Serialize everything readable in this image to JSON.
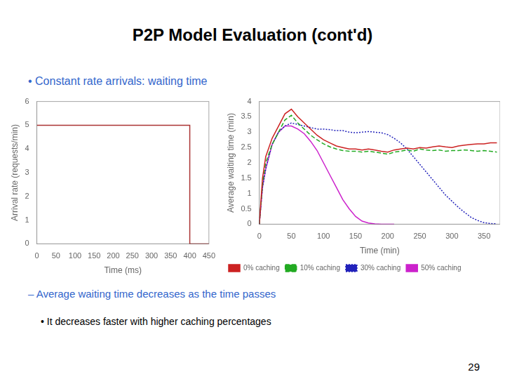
{
  "title": "P2P Model Evaluation (cont'd)",
  "annotations": [
    {
      "text": "• Constant rate arrivals: waiting time",
      "color": "#3366cc"
    },
    {
      "text": "–  Average waiting time decreases as the time passes",
      "color": "#3366cc"
    },
    {
      "text": "• It decreases faster with higher caching percentages",
      "color": "#000000"
    },
    {
      "text": "29",
      "color": "#000000"
    }
  ],
  "chart_data": [
    {
      "type": "line",
      "xlabel": "Time (ms)",
      "ylabel": "Arrival rate (requests/min)",
      "x": [
        0,
        400,
        400,
        450
      ],
      "values": [
        5,
        5,
        0,
        0
      ],
      "color": "#aa3333",
      "xlim": [
        0,
        450
      ],
      "ylim": [
        0,
        6
      ],
      "xticks": [
        0,
        50,
        100,
        150,
        200,
        250,
        300,
        350,
        400,
        450
      ],
      "yticks": [
        0,
        1,
        2,
        3,
        4,
        5,
        6
      ],
      "grid": false
    },
    {
      "type": "line",
      "xlabel": "Time (min)",
      "ylabel": "Average waiting time (min)",
      "xlim": [
        0,
        375
      ],
      "ylim": [
        0,
        4
      ],
      "xticks": [
        0,
        50,
        100,
        150,
        200,
        250,
        300,
        350
      ],
      "yticks": [
        0,
        0.5,
        1,
        1.5,
        2,
        2.5,
        3,
        3.5,
        4
      ],
      "grid": false,
      "legend": "lower left",
      "series": [
        {
          "name": "0% caching",
          "color": "#cc2222",
          "line_style": "solid",
          "x": [
            0,
            5,
            10,
            20,
            30,
            40,
            50,
            60,
            70,
            80,
            90,
            100,
            110,
            120,
            130,
            140,
            150,
            160,
            170,
            180,
            190,
            200,
            210,
            220,
            230,
            240,
            250,
            260,
            270,
            280,
            290,
            300,
            310,
            320,
            330,
            340,
            350,
            360,
            370
          ],
          "values": [
            0,
            1.5,
            2.2,
            2.8,
            3.2,
            3.6,
            3.75,
            3.5,
            3.3,
            3.1,
            2.9,
            2.75,
            2.65,
            2.55,
            2.5,
            2.45,
            2.45,
            2.42,
            2.45,
            2.42,
            2.38,
            2.35,
            2.42,
            2.45,
            2.48,
            2.45,
            2.5,
            2.48,
            2.52,
            2.55,
            2.52,
            2.5,
            2.55,
            2.58,
            2.6,
            2.62,
            2.62,
            2.65,
            2.65
          ]
        },
        {
          "name": "10% caching",
          "color": "#22aa22",
          "line_style": "dashed",
          "x": [
            0,
            5,
            10,
            20,
            30,
            40,
            50,
            60,
            70,
            80,
            90,
            100,
            110,
            120,
            130,
            140,
            150,
            160,
            170,
            180,
            190,
            200,
            210,
            220,
            230,
            240,
            250,
            260,
            270,
            280,
            290,
            300,
            310,
            320,
            330,
            340,
            350,
            360,
            370
          ],
          "values": [
            0,
            1.3,
            2.0,
            2.6,
            3.0,
            3.4,
            3.55,
            3.3,
            3.1,
            2.9,
            2.75,
            2.62,
            2.52,
            2.45,
            2.4,
            2.38,
            2.38,
            2.35,
            2.38,
            2.35,
            2.32,
            2.28,
            2.35,
            2.38,
            2.42,
            2.38,
            2.45,
            2.42,
            2.4,
            2.42,
            2.38,
            2.4,
            2.4,
            2.42,
            2.4,
            2.38,
            2.4,
            2.38,
            2.35
          ]
        },
        {
          "name": "30% caching",
          "color": "#2222bb",
          "line_style": "dotted",
          "x": [
            0,
            5,
            10,
            20,
            30,
            40,
            50,
            60,
            70,
            80,
            90,
            100,
            110,
            120,
            130,
            140,
            150,
            160,
            170,
            180,
            190,
            200,
            210,
            220,
            230,
            240,
            250,
            260,
            270,
            280,
            290,
            300,
            310,
            320,
            330,
            340,
            350,
            360,
            370
          ],
          "values": [
            0,
            1.2,
            1.8,
            2.6,
            3.0,
            3.2,
            3.3,
            3.25,
            3.2,
            3.15,
            3.1,
            3.1,
            3.08,
            3.05,
            3.05,
            3.0,
            2.98,
            3.0,
            3.02,
            3.0,
            2.98,
            2.92,
            2.8,
            2.65,
            2.45,
            2.2,
            1.95,
            1.7,
            1.45,
            1.2,
            0.95,
            0.75,
            0.55,
            0.38,
            0.22,
            0.12,
            0.05,
            0.02,
            0.01
          ]
        },
        {
          "name": "50% caching",
          "color": "#cc22cc",
          "line_style": "solid",
          "x": [
            0,
            5,
            10,
            20,
            30,
            40,
            50,
            60,
            70,
            80,
            90,
            100,
            110,
            120,
            130,
            140,
            150,
            160,
            170,
            180,
            190,
            200,
            205,
            210
          ],
          "values": [
            0,
            1.2,
            1.8,
            2.6,
            3.0,
            3.2,
            3.2,
            3.1,
            2.95,
            2.7,
            2.4,
            2.0,
            1.6,
            1.2,
            0.8,
            0.5,
            0.25,
            0.1,
            0.04,
            0.01,
            0.0,
            0.0,
            0.0,
            0.0
          ]
        }
      ]
    }
  ]
}
